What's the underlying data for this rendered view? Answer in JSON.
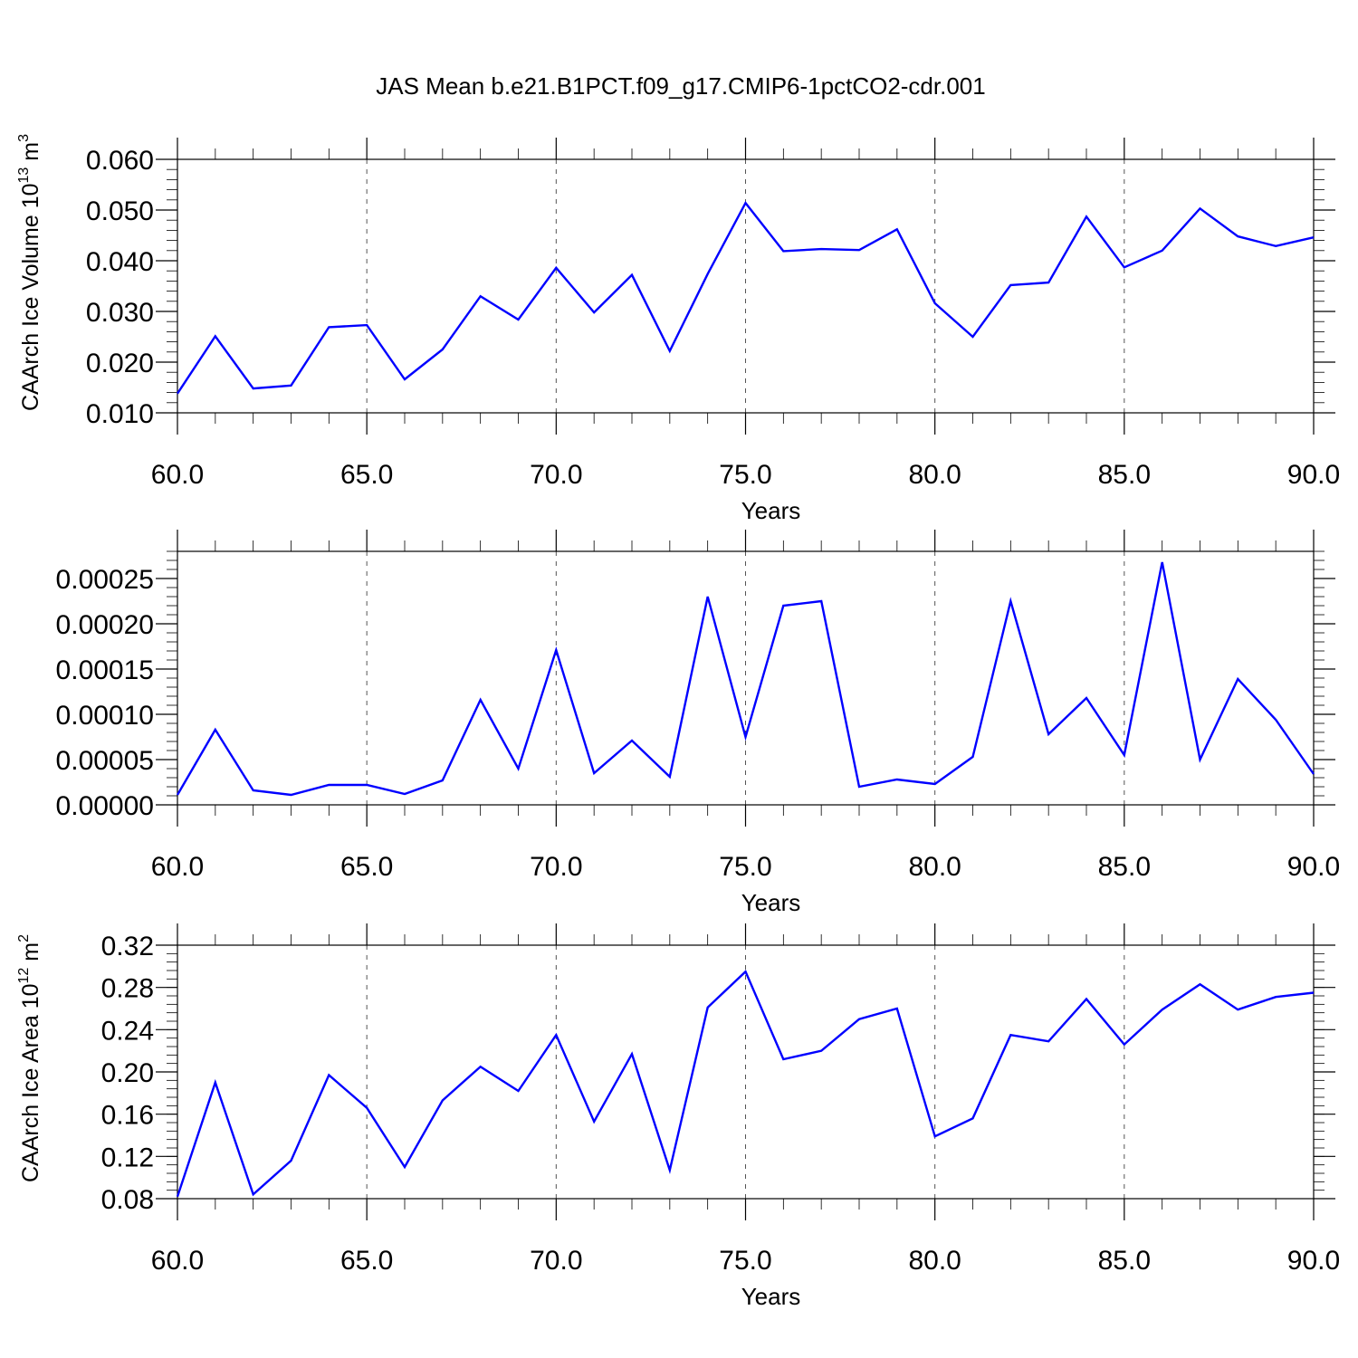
{
  "title": "JAS Mean b.e21.B1PCT.f09_g17.CMIP6-1pctCO2-cdr.001",
  "colors": {
    "line": "#0000ff",
    "grid": "#555555",
    "axes": "#000000"
  },
  "chart_data": [
    {
      "type": "line",
      "xlabel": "Years",
      "ylabel_main": "CAArch Ice Volume 10",
      "ylabel_exp": "13",
      "ylabel_unit": " m",
      "ylabel_unit_exp": "3",
      "xlim": [
        60,
        90
      ],
      "ylim": [
        0.01,
        0.06
      ],
      "ylim_display_max": 0.06,
      "x_ticks": [
        60,
        65,
        70,
        75,
        80,
        85,
        90
      ],
      "x_tick_labels": [
        "60.0",
        "65.0",
        "70.0",
        "75.0",
        "80.0",
        "85.0",
        "90.0"
      ],
      "y_ticks": [
        0.01,
        0.02,
        0.03,
        0.04,
        0.05,
        0.06
      ],
      "y_tick_labels": [
        "0.010",
        "0.020",
        "0.030",
        "0.040",
        "0.050",
        "0.060"
      ],
      "y_minor_step": 0.002,
      "grid": "vertical dashed at major x ticks",
      "x": [
        60,
        61,
        62,
        63,
        64,
        65,
        66,
        67,
        68,
        69,
        70,
        71,
        72,
        73,
        74,
        75,
        76,
        77,
        78,
        79,
        80,
        81,
        82,
        83,
        84,
        85,
        86,
        87,
        88,
        89,
        90
      ],
      "y": [
        0.0138,
        0.0251,
        0.0148,
        0.0154,
        0.0269,
        0.0273,
        0.0166,
        0.0225,
        0.033,
        0.0284,
        0.0386,
        0.0298,
        0.0372,
        0.0222,
        0.0374,
        0.0514,
        0.0419,
        0.0423,
        0.0421,
        0.0462,
        0.0316,
        0.025,
        0.0352,
        0.0357,
        0.0487,
        0.0387,
        0.042,
        0.0503,
        0.0448,
        0.0429,
        0.0446
      ]
    },
    {
      "type": "line",
      "xlabel": "Years",
      "xlim": [
        60,
        90
      ],
      "ylim": [
        0.0,
        0.00028
      ],
      "x_ticks": [
        60,
        65,
        70,
        75,
        80,
        85,
        90
      ],
      "x_tick_labels": [
        "60.0",
        "65.0",
        "70.0",
        "75.0",
        "80.0",
        "85.0",
        "90.0"
      ],
      "y_ticks": [
        0.0,
        5e-05,
        0.0001,
        0.00015,
        0.0002,
        0.00025
      ],
      "y_tick_labels": [
        "0.00000",
        "0.00005",
        "0.00010",
        "0.00015",
        "0.00020",
        "0.00025"
      ],
      "y_minor_step": 1e-05,
      "grid": "vertical dashed at major x ticks",
      "x": [
        60,
        61,
        62,
        63,
        64,
        65,
        66,
        67,
        68,
        69,
        70,
        71,
        72,
        73,
        74,
        75,
        76,
        77,
        78,
        79,
        80,
        81,
        82,
        83,
        84,
        85,
        86,
        87,
        88,
        89,
        90
      ],
      "y": [
        1.1e-05,
        8.3e-05,
        1.6e-05,
        1.1e-05,
        2.2e-05,
        2.2e-05,
        1.2e-05,
        2.7e-05,
        0.000116,
        4e-05,
        0.000171,
        3.5e-05,
        7.1e-05,
        3.1e-05,
        0.00023,
        7.5e-05,
        0.00022,
        0.000225,
        2e-05,
        2.8e-05,
        2.3e-05,
        5.3e-05,
        0.000225,
        7.8e-05,
        0.000118,
        5.5e-05,
        0.000268,
        5e-05,
        0.000139,
        9.4e-05,
        3.4e-05
      ]
    },
    {
      "type": "line",
      "xlabel": "Years",
      "ylabel_main": "CAArch Ice Area 10",
      "ylabel_exp": "12",
      "ylabel_unit": " m",
      "ylabel_unit_exp": "2",
      "xlim": [
        60,
        90
      ],
      "ylim": [
        0.08,
        0.32
      ],
      "x_ticks": [
        60,
        65,
        70,
        75,
        80,
        85,
        90
      ],
      "x_tick_labels": [
        "60.0",
        "65.0",
        "70.0",
        "75.0",
        "80.0",
        "85.0",
        "90.0"
      ],
      "y_ticks": [
        0.08,
        0.12,
        0.16,
        0.2,
        0.24,
        0.28,
        0.32
      ],
      "y_tick_labels": [
        "0.08",
        "0.12",
        "0.16",
        "0.20",
        "0.24",
        "0.28",
        "0.32"
      ],
      "y_minor_step": 0.008,
      "grid": "vertical dashed at major x ticks",
      "x": [
        60,
        61,
        62,
        63,
        64,
        65,
        66,
        67,
        68,
        69,
        70,
        71,
        72,
        73,
        74,
        75,
        76,
        77,
        78,
        79,
        80,
        81,
        82,
        83,
        84,
        85,
        86,
        87,
        88,
        89,
        90
      ],
      "y": [
        0.082,
        0.19,
        0.084,
        0.116,
        0.197,
        0.166,
        0.11,
        0.173,
        0.205,
        0.182,
        0.235,
        0.153,
        0.217,
        0.107,
        0.261,
        0.295,
        0.212,
        0.22,
        0.25,
        0.26,
        0.139,
        0.156,
        0.235,
        0.229,
        0.269,
        0.226,
        0.259,
        0.283,
        0.259,
        0.271,
        0.275
      ]
    }
  ]
}
